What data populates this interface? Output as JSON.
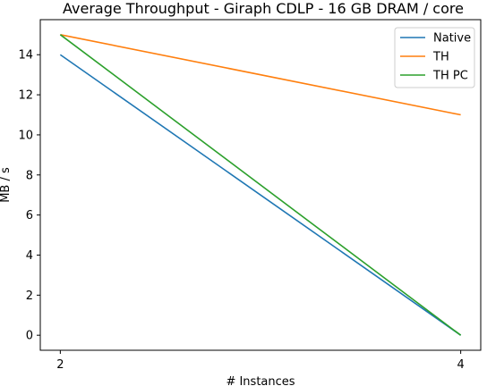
{
  "chart_data": {
    "type": "line",
    "title": "Average Throughput - Giraph CDLP - 16 GB DRAM / core",
    "xlabel": "# Instances",
    "ylabel": "MB / s",
    "x": [
      2,
      4
    ],
    "xticks": [
      "2",
      "4"
    ],
    "xlim": [
      1.9,
      4.1
    ],
    "ylim": [
      -0.75,
      15.75
    ],
    "yticks": [
      0,
      2,
      4,
      6,
      8,
      10,
      12,
      14
    ],
    "grid": false,
    "legend_position": "top-right",
    "series": [
      {
        "name": "Native",
        "values": [
          14,
          0
        ],
        "color": "#1f77b4"
      },
      {
        "name": "TH",
        "values": [
          15,
          11
        ],
        "color": "#ff7f0e"
      },
      {
        "name": "TH PC",
        "values": [
          15,
          0
        ],
        "color": "#2ca02c"
      }
    ]
  }
}
